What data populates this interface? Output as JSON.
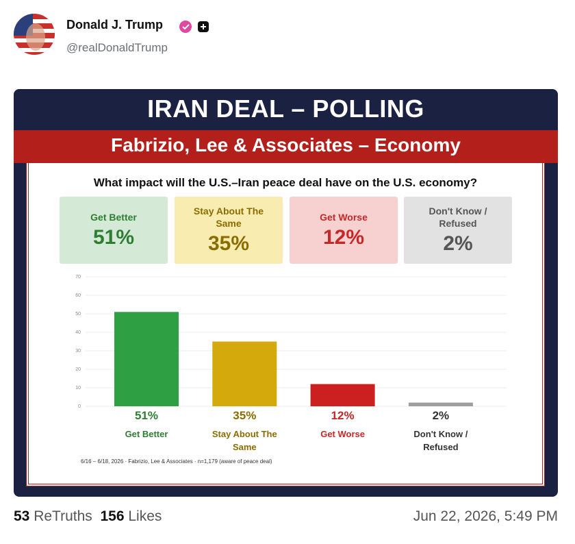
{
  "post": {
    "author": "Donald J. Trump",
    "handle": "@realDonaldTrump",
    "retruths": 53,
    "retruths_label": "ReTruths",
    "likes": 156,
    "likes_label": "Likes",
    "timestamp": "Jun 22, 2026, 5:49 PM"
  },
  "chart_data": {
    "type": "bar",
    "title": "IRAN DEAL – POLLING",
    "subtitle": "Fabrizio, Lee & Associates – Economy",
    "question": "What impact will the U.S.–Iran peace deal have on the U.S. economy?",
    "categories": [
      "Get Better",
      "Stay About The Same",
      "Get Worse",
      "Don't Know / Refused"
    ],
    "values": [
      51,
      35,
      12,
      2
    ],
    "value_labels": [
      "51%",
      "35%",
      "12%",
      "2%"
    ],
    "colors": [
      "#2ea043",
      "#d4a90c",
      "#cc1f1f",
      "#9e9e9e"
    ],
    "ylim": [
      0,
      70
    ],
    "yticks": [
      0,
      10,
      20,
      30,
      40,
      50,
      60,
      70
    ],
    "grid": true,
    "footnote": "6/16 – 6/18, 2026 · Fabrizio, Lee & Associates · n=1,179 (aware of peace deal)"
  }
}
